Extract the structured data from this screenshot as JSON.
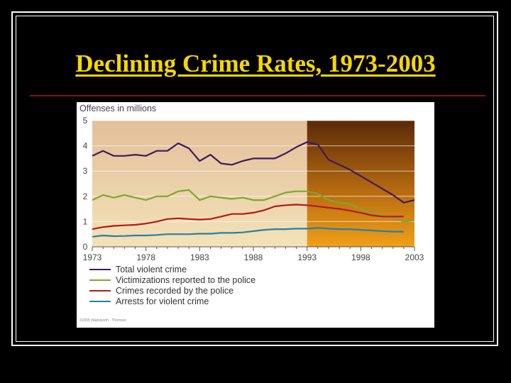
{
  "slide": {
    "title": "Declining Crime Rates, 1973-2003"
  },
  "copyright": "©2005 Wadsworth - Thomson",
  "colors": {
    "background": "#000000",
    "title": "#f5d800",
    "rule": "#8b1010",
    "violent": "#3d1a5e",
    "victimizations": "#7fa631",
    "recorded": "#b51818",
    "arrests": "#2a7ea8"
  },
  "chart_data": {
    "type": "line",
    "title": "Offenses in millions",
    "xlabel": "",
    "ylabel": "",
    "xlim": [
      1973,
      2003
    ],
    "ylim": [
      0,
      5
    ],
    "x_ticks": [
      "1973",
      "1978",
      "1983",
      "1988",
      "1993",
      "1998",
      "2003"
    ],
    "y_ticks": [
      "0",
      "1",
      "2",
      "3",
      "4",
      "5"
    ],
    "shaded_period_start": 1993,
    "legend_position": "bottom-left",
    "grid": "horizontal",
    "series": [
      {
        "name": "Total violent crime",
        "color": "#3d1a5e",
        "x": [
          1973,
          1974,
          1975,
          1976,
          1977,
          1978,
          1979,
          1980,
          1981,
          1982,
          1983,
          1984,
          1985,
          1986,
          1987,
          1988,
          1989,
          1990,
          1991,
          1992,
          1993,
          1994,
          1995,
          1996,
          1997,
          1998,
          1999,
          2000,
          2001,
          2002,
          2003
        ],
        "values": [
          3.6,
          3.8,
          3.6,
          3.6,
          3.65,
          3.6,
          3.8,
          3.8,
          4.1,
          3.9,
          3.4,
          3.65,
          3.3,
          3.25,
          3.4,
          3.5,
          3.5,
          3.5,
          3.7,
          3.95,
          4.15,
          4.05,
          3.45,
          3.25,
          3.05,
          2.8,
          2.55,
          2.3,
          2.05,
          1.75,
          1.85
        ]
      },
      {
        "name": "Victimizations reported to the police",
        "color": "#7fa631",
        "x": [
          1973,
          1974,
          1975,
          1976,
          1977,
          1978,
          1979,
          1980,
          1981,
          1982,
          1983,
          1984,
          1985,
          1986,
          1987,
          1988,
          1989,
          1990,
          1991,
          1992,
          1993,
          1994,
          1995,
          1996,
          1997,
          1998,
          1999,
          2000,
          2001,
          2002,
          2003
        ],
        "values": [
          1.85,
          2.05,
          1.95,
          2.05,
          1.95,
          1.85,
          2.0,
          2.0,
          2.2,
          2.25,
          1.85,
          2.0,
          1.95,
          1.9,
          1.95,
          1.85,
          1.85,
          2.0,
          2.15,
          2.2,
          2.2,
          2.1,
          1.85,
          1.75,
          1.7,
          1.5,
          1.35,
          1.25,
          1.15,
          1.0,
          1.05
        ]
      },
      {
        "name": "Crimes recorded by the police",
        "color": "#b51818",
        "x": [
          1973,
          1974,
          1975,
          1976,
          1977,
          1978,
          1979,
          1980,
          1981,
          1982,
          1983,
          1984,
          1985,
          1986,
          1987,
          1988,
          1989,
          1990,
          1991,
          1992,
          1993,
          1994,
          1995,
          1996,
          1997,
          1998,
          1999,
          2000,
          2001,
          2002
        ],
        "values": [
          0.7,
          0.78,
          0.83,
          0.85,
          0.87,
          0.92,
          1.0,
          1.1,
          1.13,
          1.1,
          1.08,
          1.1,
          1.2,
          1.3,
          1.3,
          1.35,
          1.45,
          1.6,
          1.65,
          1.67,
          1.65,
          1.6,
          1.55,
          1.5,
          1.43,
          1.35,
          1.25,
          1.2,
          1.2,
          1.2
        ]
      },
      {
        "name": "Arrests for violent crime",
        "color": "#2a7ea8",
        "x": [
          1973,
          1974,
          1975,
          1976,
          1977,
          1978,
          1979,
          1980,
          1981,
          1982,
          1983,
          1984,
          1985,
          1986,
          1987,
          1988,
          1989,
          1990,
          1991,
          1992,
          1993,
          1994,
          1995,
          1996,
          1997,
          1998,
          1999,
          2000,
          2001,
          2002
        ],
        "values": [
          0.4,
          0.45,
          0.42,
          0.43,
          0.45,
          0.45,
          0.47,
          0.5,
          0.5,
          0.5,
          0.52,
          0.52,
          0.55,
          0.55,
          0.57,
          0.62,
          0.67,
          0.7,
          0.7,
          0.72,
          0.72,
          0.75,
          0.72,
          0.7,
          0.7,
          0.67,
          0.65,
          0.62,
          0.6,
          0.6
        ]
      }
    ]
  }
}
